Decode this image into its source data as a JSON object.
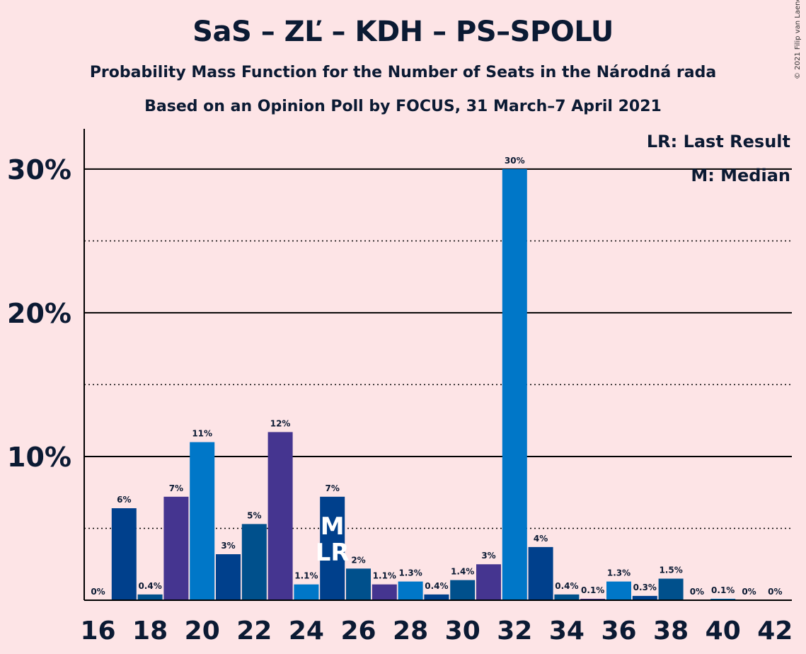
{
  "title": "SaS – ZĽ – KDH – PS–SPOLU",
  "subtitle": "Probability Mass Function for the Number of Seats in the Národná rada",
  "subtitle2": "Based on an Opinion Poll by FOCUS, 31 March–7 April 2021",
  "copyright": "© 2021 Filip van Laenen",
  "legend": {
    "last_result": "LR: Last Result",
    "median": "M: Median"
  },
  "colors": {
    "background": "#fde4e6",
    "palette": [
      "#0077c8",
      "#00408c",
      "#00508c",
      "#453590"
    ]
  },
  "chart_data": {
    "type": "bar",
    "x": [
      16,
      17,
      18,
      19,
      20,
      21,
      22,
      23,
      24,
      25,
      26,
      27,
      28,
      29,
      30,
      31,
      32,
      33,
      34,
      35,
      36,
      37,
      38,
      39,
      40,
      41,
      42
    ],
    "values": [
      0,
      6.4,
      0.4,
      7.2,
      11,
      3.2,
      5.3,
      11.7,
      1.1,
      7.2,
      2.2,
      1.1,
      1.3,
      0.4,
      1.4,
      2.5,
      30,
      3.7,
      0.4,
      0.1,
      1.3,
      0.3,
      1.5,
      0,
      0.1,
      0,
      0
    ],
    "labels": [
      "0%",
      "6%",
      "0.4%",
      "7%",
      "11%",
      "3%",
      "5%",
      "12%",
      "1.1%",
      "7%",
      "2%",
      "1.1%",
      "1.3%",
      "0.4%",
      "1.4%",
      "3%",
      "30%",
      "4%",
      "0.4%",
      "0.1%",
      "1.3%",
      "0.3%",
      "1.5%",
      "0%",
      "0.1%",
      "0%",
      "0%"
    ],
    "bar_colors": [
      "#0077c8",
      "#00408c",
      "#00508c",
      "#453590",
      "#0077c8",
      "#00408c",
      "#00508c",
      "#453590",
      "#0077c8",
      "#00408c",
      "#00508c",
      "#453590",
      "#0077c8",
      "#00408c",
      "#00508c",
      "#453590",
      "#0077c8",
      "#00408c",
      "#00508c",
      "#453590",
      "#0077c8",
      "#00408c",
      "#00508c",
      "#453590",
      "#0077c8",
      "#00408c",
      "#00508c"
    ],
    "x_ticks": [
      16,
      18,
      20,
      22,
      24,
      26,
      28,
      30,
      32,
      34,
      36,
      38,
      40,
      42
    ],
    "y_ticks": [
      10,
      20,
      30
    ],
    "y_tick_labels": [
      "10%",
      "20%",
      "30%"
    ],
    "y_minor_gridlines": [
      5,
      15,
      25
    ],
    "ylim": [
      0,
      32.8
    ],
    "median": 25,
    "last_result": 25,
    "median_marker": "M",
    "last_result_marker": "LR",
    "legend_position": "top-right"
  }
}
